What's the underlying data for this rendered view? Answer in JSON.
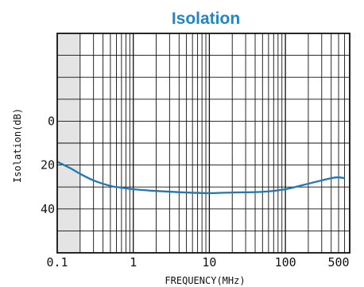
{
  "chart_data": {
    "type": "line",
    "title": "Isolation",
    "xlabel": "FREQUENCY(MHz)",
    "ylabel": "Isolation(dB)",
    "x_scale": "log",
    "xlim": [
      0.1,
      700
    ],
    "ylim": [
      -40,
      60
    ],
    "y_inverted": true,
    "grid": true,
    "x_ticks": [
      {
        "value": 0.1,
        "label": "0.1"
      },
      {
        "value": 1,
        "label": "1"
      },
      {
        "value": 10,
        "label": "10"
      },
      {
        "value": 100,
        "label": "100"
      },
      {
        "value": 500,
        "label": "500"
      }
    ],
    "y_ticks": [
      {
        "value": 0,
        "label": "0"
      },
      {
        "value": 20,
        "label": "20"
      },
      {
        "value": 40,
        "label": "40"
      }
    ],
    "shaded_region_x": [
      0.1,
      0.2
    ],
    "series": [
      {
        "color": "#1f78b4",
        "x": [
          0.1,
          0.15,
          0.2,
          0.3,
          0.5,
          0.7,
          1,
          2,
          5,
          10,
          20,
          50,
          100,
          200,
          400,
          500,
          600
        ],
        "y": [
          18.5,
          21.5,
          24,
          27,
          29.5,
          30.3,
          31,
          31.8,
          32.5,
          32.8,
          32.5,
          32.2,
          31,
          28.5,
          26,
          25.6,
          26
        ]
      }
    ]
  }
}
